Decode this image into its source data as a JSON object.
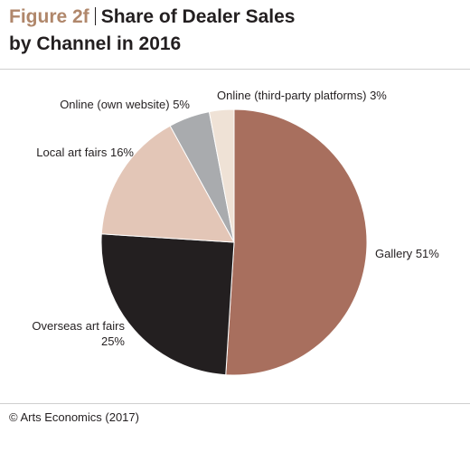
{
  "chart_data": {
    "type": "pie",
    "figure_label": "Figure 2f",
    "title": "Share of Dealer Sales by Channel in 2016",
    "categories": [
      "Gallery",
      "Overseas art fairs",
      "Local art fairs",
      "Online (own website)",
      "Online (third-party platforms)"
    ],
    "values": [
      51,
      25,
      16,
      5,
      3
    ],
    "value_labels": [
      "51%",
      "25%",
      "16%",
      "5%",
      "3%"
    ],
    "colors": [
      "#a86f5e",
      "#231f20",
      "#e3c6b7",
      "#a9abae",
      "#efe2d6"
    ],
    "source": "© Arts Economics (2017)"
  }
}
